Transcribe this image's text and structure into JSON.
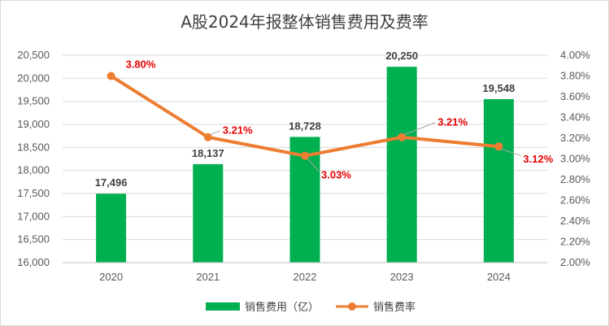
{
  "chart_data": {
    "type": "bar",
    "title": "A股2024年报整体销售费用及费率",
    "categories": [
      "2020",
      "2021",
      "2022",
      "2023",
      "2024"
    ],
    "series": [
      {
        "name": "销售费用（亿）",
        "type": "bar",
        "axis": "left",
        "values": [
          17496,
          18137,
          18728,
          20250,
          19548
        ],
        "labels": [
          "17,496",
          "18,137",
          "18,728",
          "20,250",
          "19,548"
        ],
        "color": "#00b050"
      },
      {
        "name": "销售费率",
        "type": "line",
        "axis": "right",
        "values": [
          3.8,
          3.21,
          3.03,
          3.21,
          3.12
        ],
        "labels": [
          "3.80%",
          "3.21%",
          "3.03%",
          "3.21%",
          "3.12%"
        ],
        "color": "#ed7d31",
        "label_color": "#e60000"
      }
    ],
    "left_axis": {
      "ylim": [
        16000,
        20500
      ],
      "ticks": [
        16000,
        16500,
        17000,
        17500,
        18000,
        18500,
        19000,
        19500,
        20000,
        20500
      ],
      "tick_labels": [
        "16,000",
        "16,500",
        "17,000",
        "17,500",
        "18,000",
        "18,500",
        "19,000",
        "19,500",
        "20,000",
        "20,500"
      ]
    },
    "right_axis": {
      "ylim": [
        2.0,
        4.0
      ],
      "ticks": [
        2.0,
        2.2,
        2.4,
        2.6,
        2.8,
        3.0,
        3.2,
        3.4,
        3.6,
        3.8,
        4.0
      ],
      "tick_labels": [
        "2.00%",
        "2.20%",
        "2.40%",
        "2.60%",
        "2.80%",
        "3.00%",
        "3.20%",
        "3.40%",
        "3.60%",
        "3.80%",
        "4.00%"
      ]
    },
    "grid": true,
    "legend_position": "bottom"
  }
}
